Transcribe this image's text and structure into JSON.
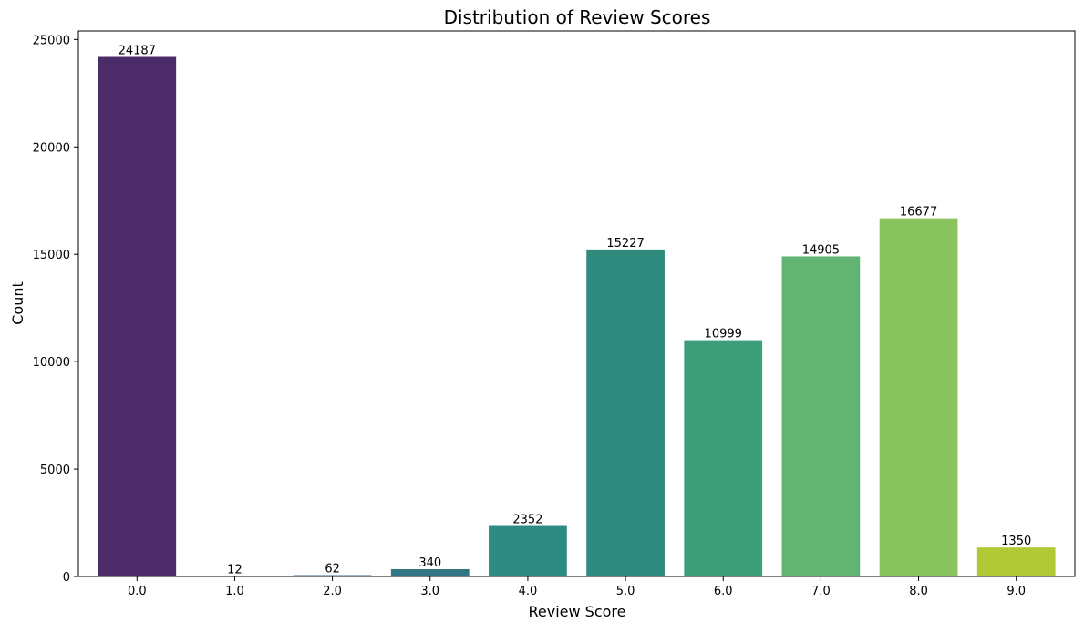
{
  "chart_data": {
    "type": "bar",
    "title": "Distribution of Review Scores",
    "xlabel": "Review Score",
    "ylabel": "Count",
    "categories": [
      "0.0",
      "1.0",
      "2.0",
      "3.0",
      "4.0",
      "5.0",
      "6.0",
      "7.0",
      "8.0",
      "9.0"
    ],
    "values": [
      24187,
      12,
      62,
      340,
      2352,
      15227,
      10999,
      14905,
      16677,
      1350
    ],
    "value_labels": [
      "24187",
      "12",
      "62",
      "340",
      "2352",
      "15227",
      "10999",
      "14905",
      "16677",
      "1350"
    ],
    "ylim": [
      0,
      25396
    ],
    "yticks": [
      0,
      5000,
      10000,
      15000,
      20000,
      25000
    ],
    "ytick_labels": [
      "0",
      "5000",
      "10000",
      "15000",
      "20000",
      "25000"
    ],
    "colors": [
      "#4b2c68",
      "#433f84",
      "#3a5c8c",
      "#327585",
      "#2e8b82",
      "#2f8b7e",
      "#3c9f7a",
      "#61b472",
      "#88c35e",
      "#b1c935"
    ],
    "grid": false,
    "legend": "none"
  }
}
